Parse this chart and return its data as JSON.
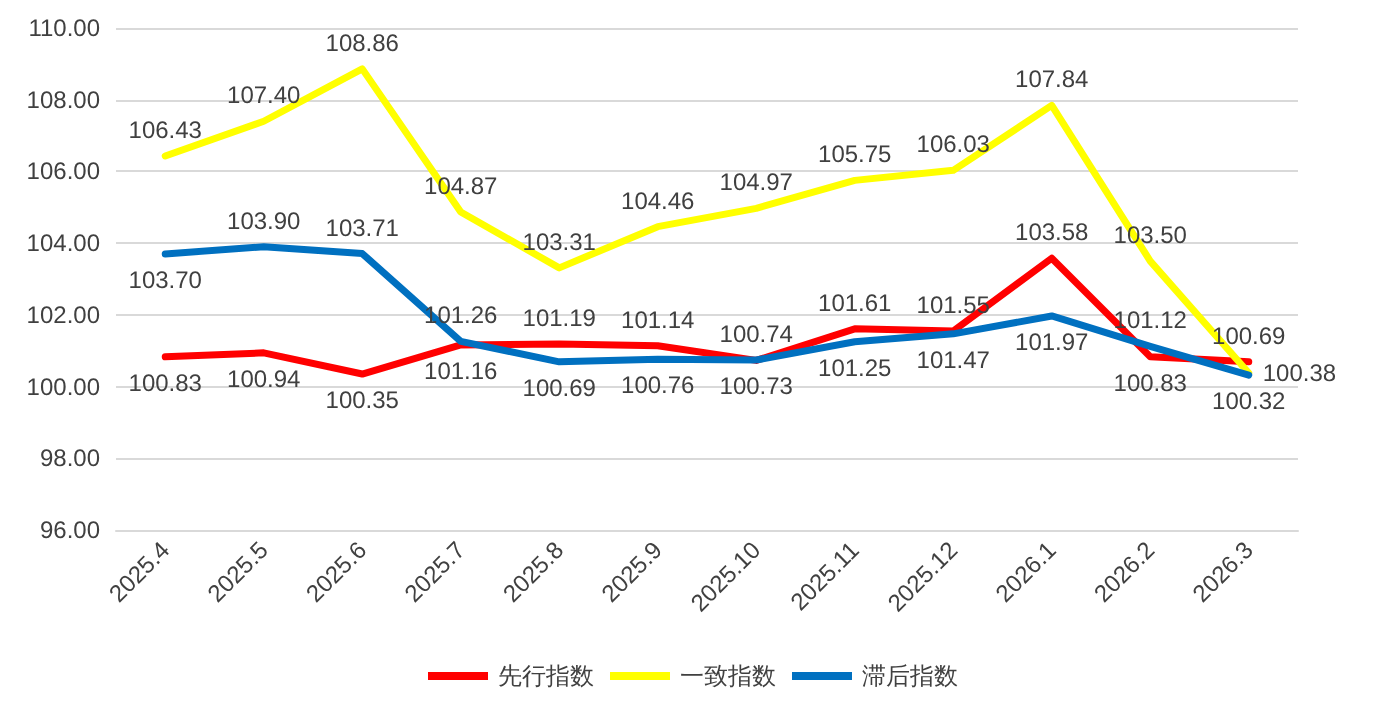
{
  "chart_data": {
    "type": "line",
    "categories": [
      "2025.4",
      "2025.5",
      "2025.6",
      "2025.7",
      "2025.8",
      "2025.9",
      "2025.10",
      "2025.11",
      "2025.12",
      "2026.1",
      "2026.2",
      "2026.3"
    ],
    "series": [
      {
        "name": "先行指数",
        "color": "#ff0000",
        "values": [
          100.83,
          100.94,
          100.35,
          101.16,
          101.19,
          101.14,
          100.73,
          101.61,
          101.55,
          103.58,
          100.83,
          100.69
        ],
        "value_labels": [
          "100.83",
          "100.94",
          "100.35",
          "101.16",
          "101.19",
          "101.14",
          "100.73",
          "101.61",
          "101.55",
          "103.58",
          "100.83",
          "100.69"
        ]
      },
      {
        "name": "一致指数",
        "color": "#ffff00",
        "values": [
          106.43,
          107.4,
          108.86,
          104.87,
          103.31,
          104.46,
          104.97,
          105.75,
          106.03,
          107.84,
          103.5,
          100.38
        ],
        "value_labels": [
          "106.43",
          "107.40",
          "108.86",
          "104.87",
          "103.31",
          "104.46",
          "104.97",
          "105.75",
          "106.03",
          "107.84",
          "103.50",
          "100.38"
        ]
      },
      {
        "name": "滞后指数",
        "color": "#0070c0",
        "values": [
          103.7,
          103.9,
          103.71,
          101.26,
          100.69,
          100.76,
          100.74,
          101.25,
          101.47,
          101.97,
          101.12,
          100.32
        ],
        "value_labels": [
          "103.70",
          "103.90",
          "103.71",
          "101.26",
          "100.69",
          "100.76",
          "100.74",
          "101.25",
          "101.47",
          "101.97",
          "101.12",
          "100.32"
        ]
      }
    ],
    "ylim": [
      96,
      110
    ],
    "yticks": [
      {
        "value": 96,
        "label": "96.00"
      },
      {
        "value": 98,
        "label": "98.00"
      },
      {
        "value": 100,
        "label": "100.00"
      },
      {
        "value": 102,
        "label": "102.00"
      },
      {
        "value": 104,
        "label": "104.00"
      },
      {
        "value": 106,
        "label": "106.00"
      },
      {
        "value": 108,
        "label": "108.00"
      },
      {
        "value": 110,
        "label": "110.00"
      }
    ],
    "grid": "y",
    "legend": "bottom",
    "marker": "none",
    "line_style": "solid"
  }
}
